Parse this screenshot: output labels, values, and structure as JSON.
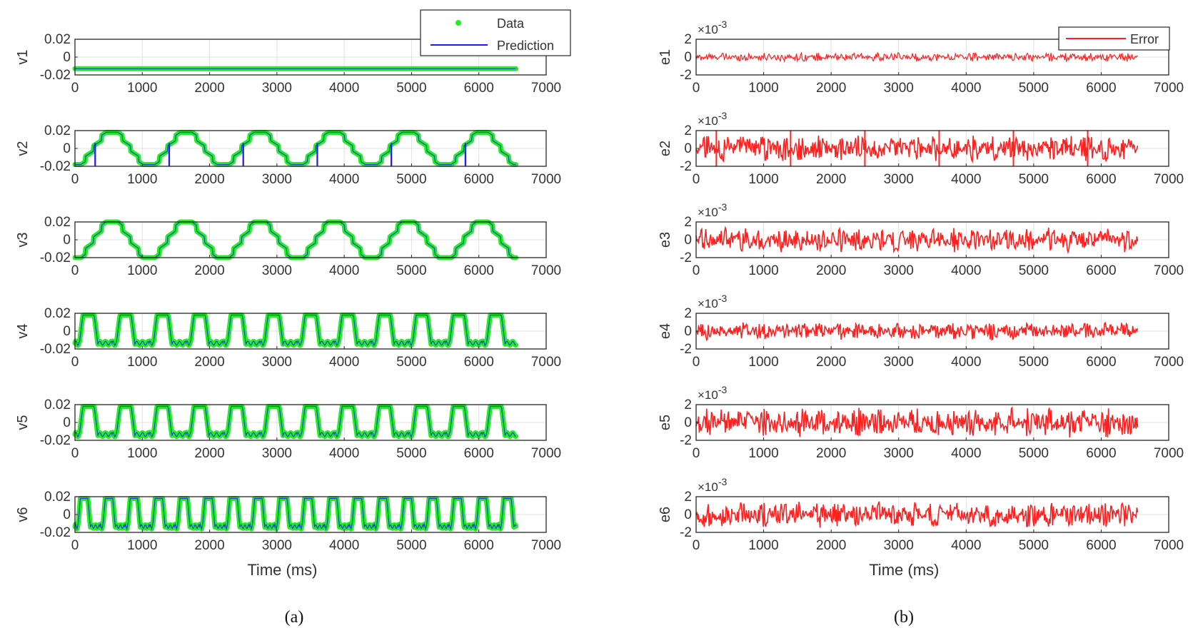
{
  "chart_data": {
    "type": "line",
    "x_ticks": [
      0,
      1000,
      2000,
      3000,
      4000,
      5000,
      6000,
      7000
    ],
    "xlim": [
      0,
      7000
    ],
    "panels": [
      {
        "label": "(a)",
        "xlabel": "Time (ms)",
        "legend": {
          "placement": "top-right",
          "entries": [
            "Data",
            "Prediction"
          ]
        },
        "colors": {
          "data": "#22ee22",
          "prediction": "#1a1aff"
        },
        "series": [
          {
            "name": "v1",
            "ylim": [
              -0.02,
              0.02
            ],
            "yticks": [
              "0.02",
              "0",
              "-0.02"
            ],
            "shape": "flat",
            "level": -0.013,
            "amplitude": 0,
            "period_ms": 0
          },
          {
            "name": "v2",
            "ylim": [
              -0.02,
              0.02
            ],
            "yticks": [
              "0.02",
              "0",
              "-0.02"
            ],
            "shape": "trapezoid",
            "amplitude": 0.018,
            "period_ms": 1100,
            "spikes_ms": [
              300,
              1400,
              2500,
              3600,
              4700,
              5800
            ]
          },
          {
            "name": "v3",
            "ylim": [
              -0.02,
              0.02
            ],
            "yticks": [
              "0.02",
              "0",
              "-0.02"
            ],
            "shape": "trapezoid",
            "amplitude": 0.02,
            "period_ms": 1100
          },
          {
            "name": "v4",
            "ylim": [
              -0.02,
              0.02
            ],
            "yticks": [
              "0.02",
              "0",
              "-0.02"
            ],
            "shape": "pulse",
            "amplitude": 0.018,
            "period_ms": 550
          },
          {
            "name": "v5",
            "ylim": [
              -0.02,
              0.02
            ],
            "yticks": [
              "0.02",
              "0",
              "-0.02"
            ],
            "shape": "pulse",
            "amplitude": 0.018,
            "period_ms": 550
          },
          {
            "name": "v6",
            "ylim": [
              -0.02,
              0.02
            ],
            "yticks": [
              "0.02",
              "0",
              "-0.02"
            ],
            "shape": "pulse",
            "amplitude": 0.018,
            "period_ms": 370
          }
        ],
        "data_end_ms": 6550
      },
      {
        "label": "(b)",
        "xlabel": "Time (ms)",
        "y_multiplier": "×10",
        "y_exponent": "-3",
        "legend": {
          "placement": "top-right",
          "entries": [
            "Error"
          ]
        },
        "colors": {
          "error": "#ff2020"
        },
        "series": [
          {
            "name": "e1",
            "ylim": [
              -2,
              2
            ],
            "yticks": [
              "2",
              "0",
              "-2"
            ],
            "amplitude": 0.5
          },
          {
            "name": "e2",
            "ylim": [
              -2,
              2
            ],
            "yticks": [
              "2",
              "0",
              "-2"
            ],
            "amplitude": 1.5,
            "spikes_ms": [
              300,
              1400,
              2500,
              3600,
              4700,
              5800
            ]
          },
          {
            "name": "e3",
            "ylim": [
              -2,
              2
            ],
            "yticks": [
              "2",
              "0",
              "-2"
            ],
            "amplitude": 1.4
          },
          {
            "name": "e4",
            "ylim": [
              -2,
              2
            ],
            "yticks": [
              "2",
              "0",
              "-2"
            ],
            "amplitude": 1.0
          },
          {
            "name": "e5",
            "ylim": [
              -2,
              2
            ],
            "yticks": [
              "2",
              "0",
              "-2"
            ],
            "amplitude": 1.7
          },
          {
            "name": "e6",
            "ylim": [
              -2,
              2
            ],
            "yticks": [
              "2",
              "0",
              "-2"
            ],
            "amplitude": 1.5
          }
        ],
        "data_end_ms": 6550
      }
    ]
  }
}
